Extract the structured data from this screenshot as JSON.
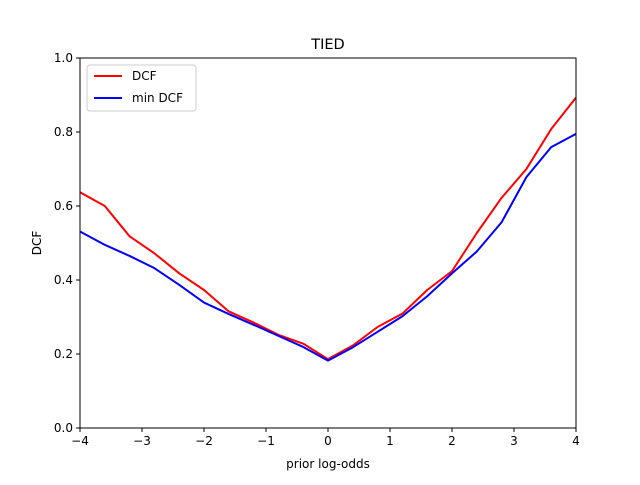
{
  "chart_data": {
    "type": "line",
    "title": "TIED",
    "xlabel": "prior log-odds",
    "ylabel": "DCF",
    "xlim": [
      -4,
      4
    ],
    "ylim": [
      0.0,
      1.0
    ],
    "xticks": [
      -4,
      -3,
      -2,
      -1,
      0,
      1,
      2,
      3,
      4
    ],
    "xtick_labels": [
      "−4",
      "−3",
      "−2",
      "−1",
      "0",
      "1",
      "2",
      "3",
      "4"
    ],
    "yticks": [
      0.0,
      0.2,
      0.4,
      0.6,
      0.8,
      1.0
    ],
    "ytick_labels": [
      "0.0",
      "0.2",
      "0.4",
      "0.6",
      "0.8",
      "1.0"
    ],
    "grid": false,
    "legend_position": "top-left",
    "x": [
      -4.0,
      -3.6,
      -3.2,
      -2.8,
      -2.4,
      -2.0,
      -1.6,
      -1.2,
      -0.8,
      -0.4,
      0.0,
      0.4,
      0.8,
      1.2,
      1.6,
      2.0,
      2.4,
      2.8,
      3.2,
      3.6,
      4.0
    ],
    "series": [
      {
        "name": "DCF",
        "color": "#ff0000",
        "values": [
          0.637,
          0.6,
          0.518,
          0.472,
          0.418,
          0.373,
          0.315,
          0.285,
          0.252,
          0.228,
          0.186,
          0.223,
          0.273,
          0.309,
          0.373,
          0.424,
          0.527,
          0.622,
          0.7,
          0.808,
          0.893
        ]
      },
      {
        "name": "min DCF",
        "color": "#0000ff",
        "values": [
          0.531,
          0.495,
          0.465,
          0.432,
          0.387,
          0.339,
          0.308,
          0.279,
          0.249,
          0.219,
          0.182,
          0.218,
          0.26,
          0.302,
          0.356,
          0.418,
          0.477,
          0.556,
          0.678,
          0.759,
          0.795
        ]
      }
    ]
  }
}
